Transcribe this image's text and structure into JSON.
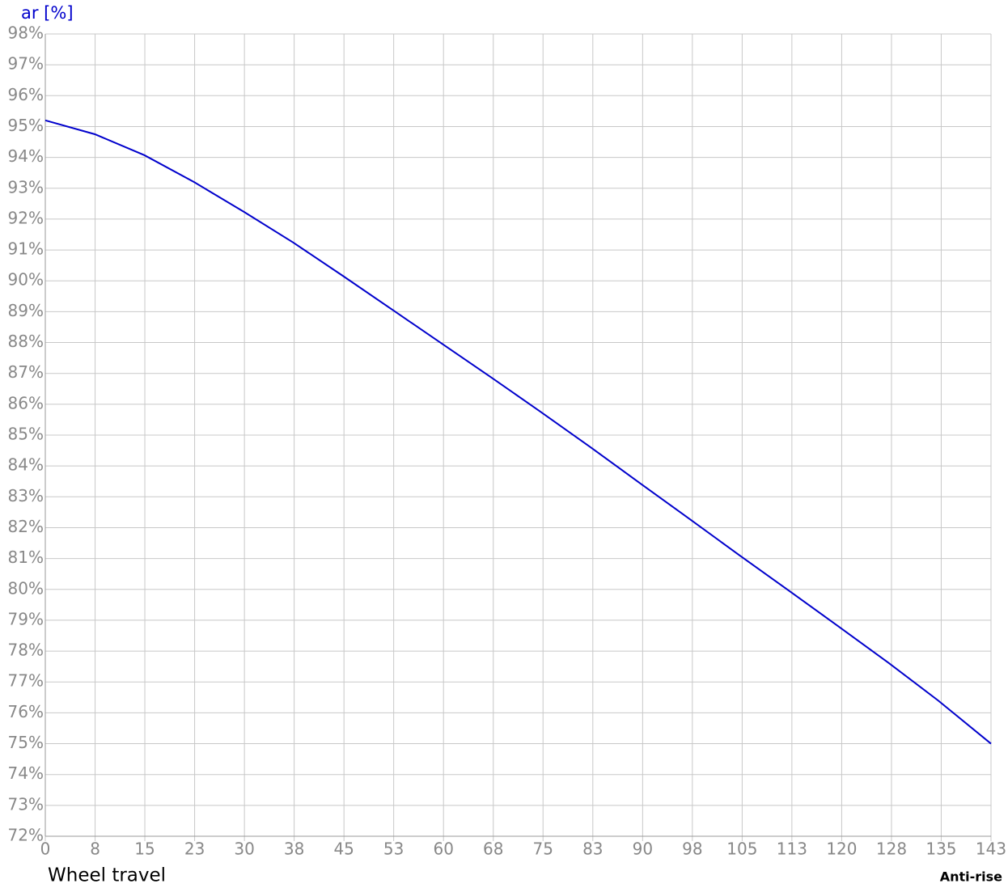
{
  "chart_data": {
    "type": "line",
    "y_axis_title": "ar [%]",
    "x_axis_title": "Wheel travel",
    "chart_label": "Anti-rise",
    "x": [
      0,
      7.5,
      15,
      22.5,
      30,
      37.5,
      45,
      52.5,
      60,
      67.5,
      75,
      82.5,
      90,
      97.5,
      105,
      112.5,
      120,
      127.5,
      135,
      143
    ],
    "series": [
      {
        "color": "#0000cc",
        "values": [
          95.2,
          94.75,
          94.07,
          93.2,
          92.24,
          91.24,
          90.16,
          89.06,
          87.96,
          86.86,
          85.74,
          84.6,
          83.43,
          82.27,
          81.1,
          79.95,
          78.79,
          77.62,
          76.4,
          75.0
        ]
      }
    ],
    "xlim": [
      0,
      143
    ],
    "ylim": [
      72,
      98
    ],
    "xticks": [
      0,
      {
        "value": 7.53,
        "label": "8"
      },
      {
        "value": 15.05,
        "label": "15"
      },
      {
        "value": 22.58,
        "label": "23"
      },
      {
        "value": 30.11,
        "label": "30"
      },
      {
        "value": 37.63,
        "label": "38"
      },
      {
        "value": 45.16,
        "label": "45"
      },
      {
        "value": 52.68,
        "label": "53"
      },
      {
        "value": 60.21,
        "label": "60"
      },
      {
        "value": 67.74,
        "label": "68"
      },
      {
        "value": 75.26,
        "label": "75"
      },
      {
        "value": 82.79,
        "label": "83"
      },
      {
        "value": 90.32,
        "label": "90"
      },
      {
        "value": 97.84,
        "label": "98"
      },
      {
        "value": 105.37,
        "label": "105"
      },
      {
        "value": 112.89,
        "label": "113"
      },
      {
        "value": 120.42,
        "label": "120"
      },
      {
        "value": 127.95,
        "label": "128"
      },
      {
        "value": 135.47,
        "label": "135"
      },
      143
    ],
    "yticks": [
      {
        "value": 72,
        "label": "72%"
      },
      {
        "value": 73,
        "label": "73%"
      },
      {
        "value": 74,
        "label": "74%"
      },
      {
        "value": 75,
        "label": "75%"
      },
      {
        "value": 76,
        "label": "76%"
      },
      {
        "value": 77,
        "label": "77%"
      },
      {
        "value": 78,
        "label": "78%"
      },
      {
        "value": 79,
        "label": "79%"
      },
      {
        "value": 80,
        "label": "80%"
      },
      {
        "value": 81,
        "label": "81%"
      },
      {
        "value": 82,
        "label": "82%"
      },
      {
        "value": 83,
        "label": "83%"
      },
      {
        "value": 84,
        "label": "84%"
      },
      {
        "value": 85,
        "label": "85%"
      },
      {
        "value": 86,
        "label": "86%"
      },
      {
        "value": 87,
        "label": "87%"
      },
      {
        "value": 88,
        "label": "88%"
      },
      {
        "value": 89,
        "label": "89%"
      },
      {
        "value": 90,
        "label": "90%"
      },
      {
        "value": 91,
        "label": "91%"
      },
      {
        "value": 92,
        "label": "92%"
      },
      {
        "value": 93,
        "label": "93%"
      },
      {
        "value": 94,
        "label": "94%"
      },
      {
        "value": 95,
        "label": "95%"
      },
      {
        "value": 96,
        "label": "96%"
      },
      {
        "value": 97,
        "label": "97%"
      },
      {
        "value": 98,
        "label": "98%"
      }
    ],
    "grid": true
  }
}
